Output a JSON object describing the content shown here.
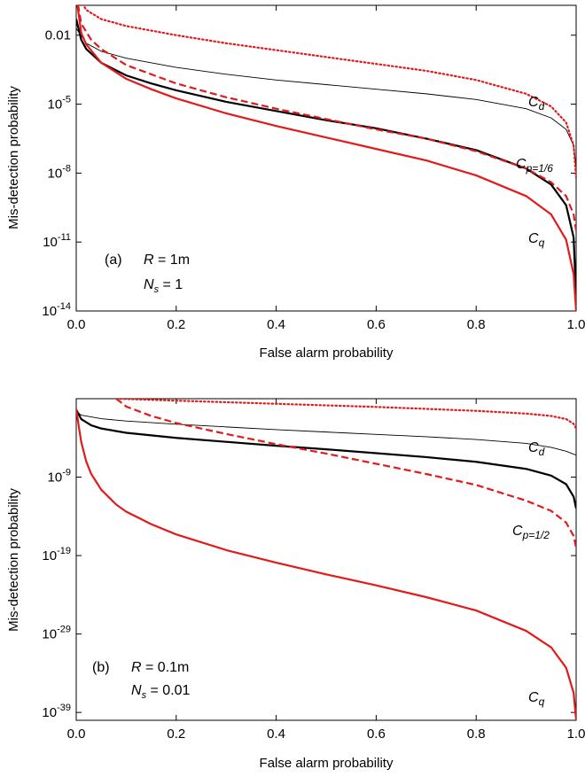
{
  "chart_data": [
    {
      "type": "line",
      "panel": "(a)",
      "xlabel": "False alarm probability",
      "ylabel": "Mis-detection probability",
      "xlim": [
        0,
        1
      ],
      "ylim_log10": [
        -14,
        -0.7
      ],
      "y_scale": "log",
      "x_ticks": [
        "0.0",
        "0.2",
        "0.4",
        "0.6",
        "0.8",
        "1.0"
      ],
      "y_ticks": [
        {
          "base": "0.01",
          "exp": "",
          "log10": -2
        },
        {
          "base": "10",
          "exp": "-5",
          "log10": -5
        },
        {
          "base": "10",
          "exp": "-8",
          "log10": -8
        },
        {
          "base": "10",
          "exp": "-11",
          "log10": -11
        },
        {
          "base": "10",
          "exp": "-14",
          "log10": -14
        }
      ],
      "annotations": {
        "panel_label": "(a)",
        "r_name": "R",
        "r_value": " = 1m",
        "n_name": "N",
        "n_sub": "s",
        "n_value": " = 1"
      },
      "curve_labels": [
        {
          "main": "C",
          "sub": "d"
        },
        {
          "main": "C",
          "sub": "p=1/6"
        },
        {
          "main": "C",
          "sub": "q"
        }
      ],
      "series": [
        {
          "color": "#000000",
          "dash": "none",
          "width": 0.9,
          "x": [
            0.0,
            0.02,
            0.05,
            0.1,
            0.2,
            0.3,
            0.4,
            0.5,
            0.6,
            0.7,
            0.8,
            0.9,
            0.95,
            0.98,
            0.995,
            1.0
          ],
          "y_log10": [
            -1.7,
            -2.35,
            -2.7,
            -3.0,
            -3.4,
            -3.7,
            -3.95,
            -4.15,
            -4.35,
            -4.55,
            -4.8,
            -5.2,
            -5.6,
            -6.1,
            -6.8,
            -7.8
          ]
        },
        {
          "color": "#000000",
          "dash": "none",
          "width": 2.2,
          "x": [
            0.0,
            0.01,
            0.02,
            0.05,
            0.1,
            0.15,
            0.2,
            0.3,
            0.4,
            0.5,
            0.6,
            0.7,
            0.8,
            0.9,
            0.95,
            0.98,
            0.995,
            1.0
          ],
          "y_log10": [
            -1.3,
            -2.2,
            -2.6,
            -3.2,
            -3.75,
            -4.1,
            -4.4,
            -4.9,
            -5.3,
            -5.7,
            -6.05,
            -6.5,
            -7.0,
            -7.8,
            -8.5,
            -9.4,
            -10.8,
            -13.5
          ]
        },
        {
          "color": "#e31a1c",
          "dash": "1.5,3",
          "width": 2.2,
          "x": [
            0.0,
            0.02,
            0.05,
            0.1,
            0.2,
            0.3,
            0.4,
            0.5,
            0.6,
            0.7,
            0.8,
            0.9,
            0.95,
            0.98,
            0.995,
            1.0
          ],
          "y_log10": [
            -0.2,
            -0.9,
            -1.3,
            -1.6,
            -2.0,
            -2.35,
            -2.65,
            -2.95,
            -3.25,
            -3.55,
            -3.95,
            -4.55,
            -5.1,
            -5.8,
            -6.8,
            -8.2
          ]
        },
        {
          "color": "#e31a1c",
          "dash": "8,4",
          "width": 2.2,
          "x": [
            0.0,
            0.01,
            0.03,
            0.05,
            0.1,
            0.2,
            0.3,
            0.4,
            0.5,
            0.6,
            0.7,
            0.8,
            0.9,
            0.95,
            0.98,
            0.995,
            1.0
          ],
          "y_log10": [
            -0.2,
            -1.5,
            -2.2,
            -2.6,
            -3.3,
            -4.1,
            -4.7,
            -5.2,
            -5.65,
            -6.1,
            -6.5,
            -7.05,
            -7.8,
            -8.4,
            -9.0,
            -9.8,
            -10.5
          ]
        },
        {
          "color": "#e31a1c",
          "dash": "none",
          "width": 2.2,
          "x": [
            0.0,
            0.01,
            0.02,
            0.05,
            0.1,
            0.15,
            0.2,
            0.3,
            0.4,
            0.5,
            0.6,
            0.7,
            0.8,
            0.9,
            0.95,
            0.98,
            0.995,
            1.0
          ],
          "y_log10": [
            -0.3,
            -1.9,
            -2.4,
            -3.2,
            -3.9,
            -4.35,
            -4.75,
            -5.4,
            -5.95,
            -6.45,
            -6.95,
            -7.45,
            -8.1,
            -9.0,
            -9.8,
            -10.9,
            -12.4,
            -14.0
          ]
        }
      ]
    },
    {
      "type": "line",
      "panel": "(b)",
      "xlabel": "False alarm probability",
      "ylabel": "Mis-detection probability",
      "xlim": [
        0,
        1
      ],
      "ylim_log10": [
        -40,
        1
      ],
      "y_scale": "log",
      "x_ticks": [
        "0.0",
        "0.2",
        "0.4",
        "0.6",
        "0.8",
        "1.0"
      ],
      "y_ticks": [
        {
          "base": "10",
          "exp": "-9",
          "log10": -9
        },
        {
          "base": "10",
          "exp": "-19",
          "log10": -19
        },
        {
          "base": "10",
          "exp": "-29",
          "log10": -29
        },
        {
          "base": "10",
          "exp": "-39",
          "log10": -39
        }
      ],
      "annotations": {
        "panel_label": "(b)",
        "r_name": "R",
        "r_value": " = 0.1m",
        "n_name": "N",
        "n_sub": "s",
        "n_value": " = 0.01"
      },
      "curve_labels": [
        {
          "main": "C",
          "sub": "d"
        },
        {
          "main": "C",
          "sub": "p=1/2"
        },
        {
          "main": "C",
          "sub": "q"
        }
      ],
      "series": [
        {
          "color": "#000000",
          "dash": "none",
          "width": 0.9,
          "x": [
            0.0,
            0.01,
            0.05,
            0.1,
            0.2,
            0.3,
            0.4,
            0.5,
            0.6,
            0.7,
            0.8,
            0.9,
            0.95,
            0.98,
            1.0
          ],
          "y_log10": [
            -0.6,
            -1.1,
            -1.55,
            -1.85,
            -2.25,
            -2.6,
            -2.95,
            -3.25,
            -3.55,
            -3.85,
            -4.2,
            -4.7,
            -5.2,
            -5.7,
            -6.2
          ]
        },
        {
          "color": "#000000",
          "dash": "none",
          "width": 2.2,
          "x": [
            0.0,
            0.01,
            0.03,
            0.05,
            0.1,
            0.2,
            0.3,
            0.4,
            0.5,
            0.6,
            0.7,
            0.8,
            0.9,
            0.95,
            0.98,
            0.995,
            1.0
          ],
          "y_log10": [
            -0.4,
            -1.6,
            -2.4,
            -2.8,
            -3.35,
            -4.0,
            -4.5,
            -5.0,
            -5.45,
            -5.95,
            -6.45,
            -7.05,
            -7.95,
            -8.8,
            -9.9,
            -11.5,
            -13.0
          ]
        },
        {
          "color": "#e31a1c",
          "dash": "1.5,3",
          "width": 2.2,
          "x": [
            0.08,
            0.2,
            0.3,
            0.4,
            0.5,
            0.6,
            0.7,
            0.8,
            0.9,
            0.95,
            0.98,
            0.995,
            1.0
          ],
          "y_log10": [
            1.0,
            0.75,
            0.55,
            0.35,
            0.15,
            -0.05,
            -0.3,
            -0.55,
            -0.9,
            -1.2,
            -1.6,
            -2.2,
            -2.8
          ]
        },
        {
          "color": "#e31a1c",
          "dash": "8,4",
          "width": 2.2,
          "x": [
            0.08,
            0.1,
            0.15,
            0.2,
            0.3,
            0.4,
            0.5,
            0.6,
            0.7,
            0.8,
            0.9,
            0.95,
            0.98,
            0.995,
            1.0
          ],
          "y_log10": [
            1.0,
            0.0,
            -1.2,
            -2.1,
            -3.5,
            -4.8,
            -6.0,
            -7.3,
            -8.6,
            -10.0,
            -12.0,
            -13.3,
            -14.8,
            -16.5,
            -18.0
          ]
        },
        {
          "color": "#e31a1c",
          "dash": "none",
          "width": 2.2,
          "x": [
            0.0,
            0.005,
            0.01,
            0.02,
            0.03,
            0.05,
            0.08,
            0.1,
            0.15,
            0.2,
            0.3,
            0.4,
            0.5,
            0.6,
            0.7,
            0.8,
            0.9,
            0.95,
            0.98,
            0.995,
            1.0
          ],
          "y_log10": [
            -0.3,
            -2.5,
            -4.5,
            -7.0,
            -8.6,
            -10.6,
            -12.5,
            -13.4,
            -15.0,
            -16.3,
            -18.3,
            -19.9,
            -21.4,
            -22.8,
            -24.3,
            -26.0,
            -28.6,
            -30.7,
            -33.3,
            -36.5,
            -40.0
          ]
        }
      ]
    }
  ]
}
